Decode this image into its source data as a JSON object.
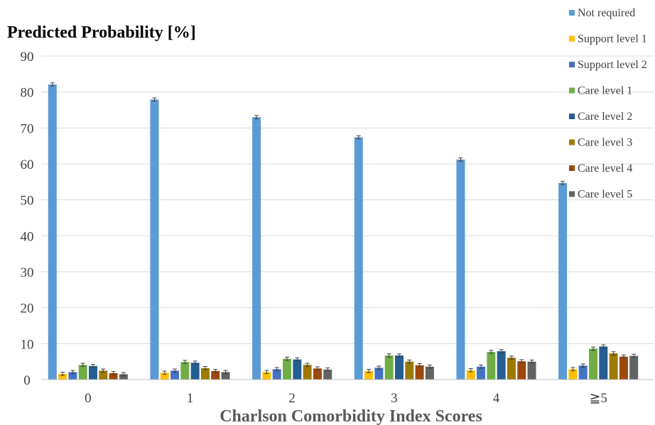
{
  "chart_data": {
    "type": "bar",
    "ylabel": "Predicted Probability [%]",
    "xlabel": "Charlson Comorbidity Index  Scores",
    "categories": [
      "0",
      "1",
      "2",
      "3",
      "4",
      "≧5"
    ],
    "ylim": [
      0,
      90
    ],
    "yticks": [
      0,
      10,
      20,
      30,
      40,
      50,
      60,
      70,
      80,
      90
    ],
    "grid": true,
    "error_bars": true,
    "legend_position": "right",
    "series": [
      {
        "name": "Not required",
        "color": "#5B9BD5",
        "values": [
          82.1,
          77.9,
          73.0,
          67.4,
          61.2,
          54.7
        ]
      },
      {
        "name": "Support level 1",
        "color": "#FFC000",
        "values": [
          1.6,
          1.9,
          2.1,
          2.4,
          2.6,
          2.9
        ]
      },
      {
        "name": "Support level 2",
        "color": "#4472C4",
        "values": [
          2.1,
          2.5,
          2.9,
          3.3,
          3.6,
          3.9
        ]
      },
      {
        "name": "Care level 1",
        "color": "#70AD47",
        "values": [
          4.1,
          4.9,
          5.8,
          6.7,
          7.7,
          8.6
        ]
      },
      {
        "name": "Care level 2",
        "color": "#255E91",
        "values": [
          3.8,
          4.7,
          5.6,
          6.7,
          7.9,
          9.2
        ]
      },
      {
        "name": "Care level 3",
        "color": "#9E7A00",
        "values": [
          2.5,
          3.2,
          4.1,
          5.0,
          6.1,
          7.3
        ]
      },
      {
        "name": "Care level 4",
        "color": "#9E480E",
        "values": [
          1.8,
          2.4,
          3.1,
          4.0,
          5.1,
          6.4
        ]
      },
      {
        "name": "Care level 5",
        "color": "#636363",
        "values": [
          1.5,
          2.1,
          2.8,
          3.6,
          5.0,
          6.6
        ]
      }
    ]
  }
}
